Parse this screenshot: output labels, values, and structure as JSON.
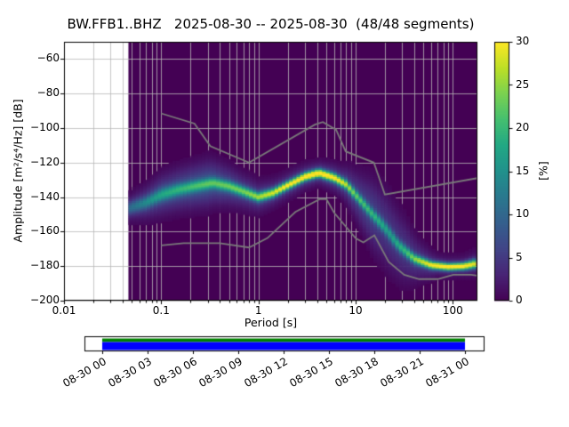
{
  "chart_data": {
    "type": "heatmap",
    "title": "BW.FFB1..BHZ   2025-08-30 -- 2025-08-30  (48/48 segments)",
    "xlabel": "Period [s]",
    "ylabel": "Amplitude [m²/s⁴/Hz] [dB]",
    "xscale": "log",
    "xlim": [
      0.01,
      179
    ],
    "ylim": [
      -200,
      -50
    ],
    "grid": true,
    "grid_color": "#b8b8b8",
    "background_no_data": "#ffffff",
    "x_ticks": [
      {
        "value": 0.01,
        "label": "0.01"
      },
      {
        "value": 0.1,
        "label": "0.1"
      },
      {
        "value": 1,
        "label": "1"
      },
      {
        "value": 10,
        "label": "10"
      },
      {
        "value": 100,
        "label": "100"
      }
    ],
    "y_ticks": [
      {
        "value": -200,
        "label": "−200"
      },
      {
        "value": -180,
        "label": "−180"
      },
      {
        "value": -160,
        "label": "−160"
      },
      {
        "value": -140,
        "label": "−140"
      },
      {
        "value": -120,
        "label": "−120"
      },
      {
        "value": -100,
        "label": "−100"
      },
      {
        "value": -80,
        "label": "−80"
      },
      {
        "value": -60,
        "label": "−60"
      }
    ],
    "colorbar": {
      "label": "[%]",
      "min": 0,
      "max": 30,
      "ticks": [
        0,
        5,
        10,
        15,
        20,
        25,
        30
      ],
      "colormap": "viridis",
      "stops": [
        [
          0.0,
          "#440154"
        ],
        [
          0.1,
          "#482475"
        ],
        [
          0.2,
          "#414487"
        ],
        [
          0.3,
          "#355f8d"
        ],
        [
          0.4,
          "#2a788e"
        ],
        [
          0.5,
          "#21918c"
        ],
        [
          0.6,
          "#22a884"
        ],
        [
          0.7,
          "#44bf70"
        ],
        [
          0.8,
          "#7ad151"
        ],
        [
          0.9,
          "#bddf26"
        ],
        [
          1.0,
          "#fde725"
        ]
      ]
    },
    "psd_distribution": {
      "period_range": [
        0.046,
        170
      ],
      "db_bin_width": 1,
      "period_bin_log10_width": 0.0376,
      "mode": {
        "periods": [
          0.048,
          0.07,
          0.1,
          0.15,
          0.22,
          0.34,
          0.5,
          0.7,
          1.0,
          1.4,
          2.0,
          3.0,
          4.2,
          6.0,
          8.0,
          10,
          14,
          20,
          28,
          40,
          60,
          90,
          130,
          170
        ],
        "db": [
          -146,
          -143,
          -138.5,
          -135.5,
          -133.5,
          -131.5,
          -133.5,
          -136.5,
          -139.8,
          -137.5,
          -133,
          -128,
          -125.8,
          -128.5,
          -132.5,
          -138.5,
          -148,
          -157.5,
          -168,
          -175.5,
          -179.2,
          -180.2,
          -179.8,
          -178.4
        ]
      },
      "ridge": {
        "periods": [
          0.048,
          0.1,
          0.3,
          0.7,
          1.5,
          4,
          7,
          10,
          15,
          22,
          32,
          45,
          70,
          120,
          170
        ],
        "percent": [
          7,
          11,
          15,
          18,
          24,
          30,
          24,
          17,
          14,
          12,
          15,
          22,
          29,
          30,
          26
        ],
        "sigma_db": [
          2.5,
          2.5,
          2.2,
          2.0,
          1.8,
          1.6,
          1.8,
          2.0,
          2.2,
          2.5,
          2.2,
          1.8,
          1.5,
          1.5,
          1.8
        ]
      },
      "halo": {
        "periods": [
          0.048,
          0.1,
          0.3,
          0.7,
          1.5,
          4,
          7,
          10,
          15,
          22,
          32,
          45,
          70,
          120,
          170
        ],
        "percent": [
          4,
          7,
          8,
          6,
          5,
          6,
          6,
          6,
          6,
          5,
          5,
          5,
          4,
          3,
          3
        ],
        "sigma_db": [
          5,
          7,
          8,
          6,
          5,
          4,
          5,
          8,
          12,
          13,
          11,
          7,
          4,
          4,
          5
        ]
      }
    },
    "noise_models": {
      "color": "#7a7a7a",
      "high": {
        "periods": [
          0.1,
          0.22,
          0.32,
          0.8,
          3.8,
          4.6,
          6.3,
          7.9,
          15.4,
          20,
          179
        ],
        "db": [
          -91.5,
          -97.4,
          -110.5,
          -120,
          -98,
          -96.5,
          -101,
          -113.5,
          -120,
          -138.5,
          -129
        ]
      },
      "low": {
        "periods": [
          0.1,
          0.17,
          0.4,
          0.8,
          1.24,
          2.4,
          4.3,
          5,
          6,
          10,
          12,
          15.6,
          21.9,
          31.6,
          45,
          70,
          101,
          154,
          179
        ],
        "db": [
          -168,
          -166.7,
          -166.7,
          -169.2,
          -163.7,
          -148.6,
          -141.1,
          -141.1,
          -149,
          -163.8,
          -166.2,
          -162.1,
          -177.5,
          -185,
          -187.5,
          -187.5,
          -185,
          -185,
          -185.5
        ]
      }
    }
  },
  "timeline": {
    "labels": [
      "08-30 00",
      "08-30 03",
      "08-30 06",
      "08-30 09",
      "08-30 12",
      "08-30 15",
      "08-30 18",
      "08-30 21",
      "08-31 00"
    ],
    "coverage_color": "#0000ff",
    "highlight_color": "#008000",
    "box_color": "#ffffff",
    "border_color": "#000000"
  }
}
